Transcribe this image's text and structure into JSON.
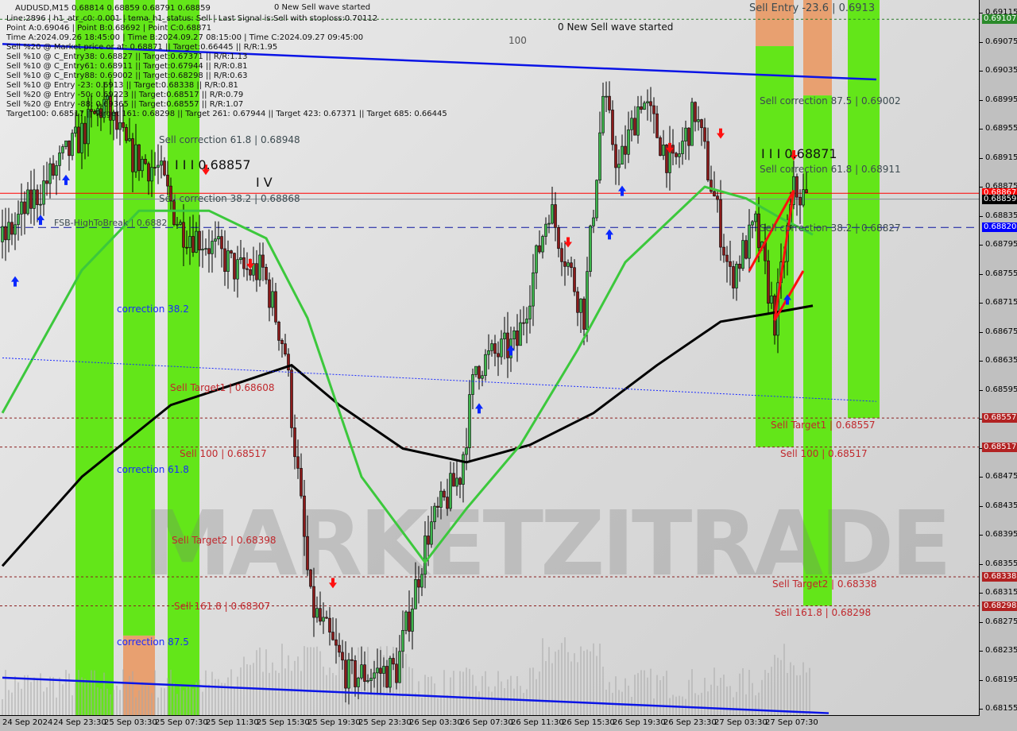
{
  "chart_data": {
    "type": "candlestick",
    "symbol_line": "AUDUSD,M15  0.68814 0.68859 0.68791 0.68859",
    "ylim": [
      0.68135,
      0.69135
    ],
    "y_ticks": [
      "0.69115",
      "0.69075",
      "0.69035",
      "0.68995",
      "0.68955",
      "0.68915",
      "0.68875",
      "0.68835",
      "0.68795",
      "0.68755",
      "0.68715",
      "0.68675",
      "0.68635",
      "0.68595",
      "0.68555",
      "0.68515",
      "0.68475",
      "0.68435",
      "0.68395",
      "0.68355",
      "0.68315",
      "0.68275",
      "0.68235",
      "0.68195",
      "0.68155"
    ],
    "x_ticks": [
      "24 Sep 2024",
      "24 Sep 23:30",
      "25 Sep 03:30",
      "25 Sep 07:30",
      "25 Sep 11:30",
      "25 Sep 15:30",
      "25 Sep 19:30",
      "25 Sep 23:30",
      "26 Sep 03:30",
      "26 Sep 07:30",
      "26 Sep 11:30",
      "26 Sep 15:30",
      "26 Sep 19:30",
      "26 Sep 23:30",
      "27 Sep 03:30",
      "27 Sep 07:30"
    ],
    "price_path": [
      [
        "2024-09-24T19:30",
        "0.68800"
      ],
      [
        "2024-09-24T22:00",
        "0.68860"
      ],
      [
        "2024-09-25T01:00",
        "0.68930"
      ],
      [
        "2024-09-25T03:30",
        "0.68990"
      ],
      [
        "2024-09-25T05:30",
        "0.68920"
      ],
      [
        "2024-09-25T07:45",
        "0.68900"
      ],
      [
        "2024-09-25T09:30",
        "0.68820"
      ],
      [
        "2024-09-25T11:30",
        "0.68800"
      ],
      [
        "2024-09-25T14:00",
        "0.68760"
      ],
      [
        "2024-09-25T16:00",
        "0.68760"
      ],
      [
        "2024-09-25T17:45",
        "0.68650"
      ],
      [
        "2024-09-25T19:45",
        "0.68300"
      ],
      [
        "2024-09-25T22:45",
        "0.68200"
      ],
      [
        "2024-09-26T02:30",
        "0.68210"
      ],
      [
        "2024-09-26T05:00",
        "0.68400"
      ],
      [
        "2024-09-26T07:30",
        "0.68480"
      ],
      [
        "2024-09-26T08:45",
        "0.68630"
      ],
      [
        "2024-09-26T12:00",
        "0.68660"
      ],
      [
        "2024-09-26T14:30",
        "0.68850"
      ],
      [
        "2024-09-26T17:15",
        "0.68700"
      ],
      [
        "2024-09-26T18:45",
        "0.69000"
      ],
      [
        "2024-09-26T20:00",
        "0.68900"
      ],
      [
        "2024-09-26T21:45",
        "0.69000"
      ],
      [
        "2024-09-27T00:15",
        "0.68900"
      ],
      [
        "2024-09-27T02:00",
        "0.68980"
      ],
      [
        "2024-09-27T03:30",
        "0.68860"
      ],
      [
        "2024-09-27T04:45",
        "0.68750"
      ],
      [
        "2024-09-27T06:45",
        "0.68820"
      ],
      [
        "2024-09-27T08:15",
        "0.68692"
      ],
      [
        "2024-09-27T09:45",
        "0.68871"
      ],
      [
        "2024-09-27T10:45",
        "0.68859"
      ]
    ],
    "series": [
      {
        "kind": "moving-average",
        "color": "#000000",
        "points": [
          [
            "2024-09-24T19:30",
            0.68353
          ],
          [
            "2024-09-25T01:45",
            0.68476
          ],
          [
            "2024-09-25T08:45",
            0.68575
          ],
          [
            "2024-09-25T14:30",
            0.68608
          ],
          [
            "2024-09-25T18:15",
            0.6863
          ],
          [
            "2024-09-25T22:00",
            0.68575
          ],
          [
            "2024-09-26T03:00",
            0.68515
          ],
          [
            "2024-09-26T08:00",
            0.68496
          ],
          [
            "2024-09-26T13:00",
            0.6852
          ],
          [
            "2024-09-26T18:00",
            0.68564
          ],
          [
            "2024-09-26T23:00",
            0.6863
          ],
          [
            "2024-09-27T04:00",
            0.6869
          ],
          [
            "2024-09-27T07:45",
            0.68701
          ],
          [
            "2024-09-27T11:15",
            0.68712
          ]
        ]
      },
      {
        "kind": "moving-average",
        "color": "#3cc83c",
        "points": [
          [
            "2024-09-24T19:30",
            0.68564
          ],
          [
            "2024-09-25T01:45",
            0.68761
          ],
          [
            "2024-09-25T06:15",
            0.68843
          ],
          [
            "2024-09-25T11:45",
            0.68843
          ],
          [
            "2024-09-25T16:15",
            0.68805
          ],
          [
            "2024-09-25T19:30",
            0.68695
          ],
          [
            "2024-09-25T23:45",
            0.68476
          ],
          [
            "2024-09-26T04:45",
            0.68358
          ],
          [
            "2024-09-26T08:00",
            0.68432
          ],
          [
            "2024-09-26T12:15",
            0.6852
          ],
          [
            "2024-09-26T16:45",
            0.68651
          ],
          [
            "2024-09-26T20:30",
            0.68772
          ],
          [
            "2024-09-27T02:45",
            0.68876
          ],
          [
            "2024-09-27T06:00",
            0.6886
          ],
          [
            "2024-09-27T08:30",
            0.68835
          ],
          [
            "2024-09-27T11:15",
            0.6881
          ]
        ]
      },
      {
        "kind": "trendline",
        "color": "#0a14e6",
        "points": [
          [
            "2024-09-24T19:30",
            0.69073
          ],
          [
            "2024-09-27T16:15",
            0.69024
          ]
        ]
      },
      {
        "kind": "trendline",
        "color": "#0a14e6",
        "points": [
          [
            "2024-09-24T19:30",
            0.68199
          ],
          [
            "2024-09-27T12:30",
            0.6815
          ]
        ]
      },
      {
        "kind": "dotted-trendline",
        "color": "#1a2aff",
        "points": [
          [
            "2024-09-24T19:30",
            0.6864
          ],
          [
            "2024-09-27T16:15",
            0.6858
          ]
        ]
      }
    ],
    "zones": [
      {
        "start": "2024-09-25T01:15",
        "end": "2024-09-25T04:15",
        "color": "#63e619",
        "from": 0.68135,
        "to": 0.69135
      },
      {
        "start": "2024-09-25T05:00",
        "end": "2024-09-25T07:30",
        "color": "#63e619",
        "from": 0.68257,
        "to": 0.69135
      },
      {
        "start": "2024-09-25T05:00",
        "end": "2024-09-25T07:30",
        "color": "#e8a070",
        "from": 0.68135,
        "to": 0.68257
      },
      {
        "start": "2024-09-25T08:30",
        "end": "2024-09-25T11:00",
        "color": "#63e619",
        "from": 0.68135,
        "to": 0.69135
      },
      {
        "start": "2024-09-27T06:45",
        "end": "2024-09-27T09:45",
        "color": "#e8a070",
        "from": 0.6907,
        "to": 0.69135
      },
      {
        "start": "2024-09-27T06:45",
        "end": "2024-09-27T09:45",
        "color": "#63e619",
        "from": 0.68517,
        "to": 0.6907
      },
      {
        "start": "2024-09-27T10:30",
        "end": "2024-09-27T12:45",
        "color": "#e8a070",
        "from": 0.69002,
        "to": 0.69135
      },
      {
        "start": "2024-09-27T10:30",
        "end": "2024-09-27T12:45",
        "color": "#63e619",
        "from": 0.68298,
        "to": 0.69002
      },
      {
        "start": "2024-09-27T14:00",
        "end": "2024-09-27T16:30",
        "color": "#63e619",
        "from": 0.68557,
        "to": 0.69135
      }
    ],
    "levels": [
      {
        "price": 0.68867,
        "color": "#ff0000",
        "style": "solid"
      },
      {
        "price": 0.68859,
        "color": "#808890",
        "style": "solid"
      },
      {
        "price": 0.6882,
        "color": "#0a14a0",
        "style": "dashed"
      },
      {
        "price": 0.69107,
        "color": "#2a7a2a",
        "style": "dotted"
      },
      {
        "price": 0.68557,
        "color": "#8b2020",
        "style": "dotted"
      },
      {
        "price": 0.68517,
        "color": "#8b2020",
        "style": "dotted"
      },
      {
        "price": 0.68338,
        "color": "#8b2020",
        "style": "dotted"
      },
      {
        "price": 0.68298,
        "color": "#8b2020",
        "style": "dotted"
      }
    ],
    "badges": [
      {
        "text": "0.69107",
        "color": "#2a8a2a"
      },
      {
        "text": "0.68867",
        "color": "#ff0000"
      },
      {
        "text": "0.68859",
        "color": "#000000"
      },
      {
        "text": "0.68820",
        "color": "#0000ff"
      },
      {
        "text": "0.68557",
        "color": "#b22222"
      },
      {
        "text": "0.68517",
        "color": "#b22222"
      },
      {
        "text": "0.68338",
        "color": "#b22222"
      },
      {
        "text": "0.68298",
        "color": "#b22222"
      }
    ]
  },
  "info": {
    "wave_top": "0 New Sell wave started",
    "l1": "Line:2896 | h1_atr_c0: 0.001 | tema_h1_status: Sell | Last Signal is:Sell with stoploss:0.70112",
    "l2": "Point A:0.69046 | Point B:0.68692 | Point C:0.68871",
    "l3": "Time A:2024.09.26 18:45:00 | Time B:2024.09.27 08:15:00 | Time C:2024.09.27 09:45:00",
    "l4": "Sell %20 @ Market price or at: 0.68871 || Target:0.66445 || R/R:1.95",
    "l5": "Sell %10 @ C_Entry38: 0.68827 || Target:0.67371 || R/R:1.13",
    "l6": "Sell %10 @ C_Entry61: 0.68911 || Target:0.67944 || R/R:0.81",
    "l7": "Sell %10 @ C_Entry88: 0.69002 || Target:0.68298 || R/R:0.63",
    "l8": "Sell %10 @ Entry -23: 0.6913 || Target:0.68338 || R/R:0.81",
    "l9": "Sell %20 @ Entry -50: 0.69223 || Target:0.68517 || R/R:0.79",
    "l10": "Sell %20 @ Entry -88: 0.69365 || Target:0.68557 || R/R:1.07",
    "l11": "Target100: 0.68517 || Target 161: 0.68298 || Target 261: 0.67944 || Target 423: 0.67371 || Target 685: 0.66445"
  },
  "labels": {
    "hundred": "100",
    "wave_mid": "0 New Sell wave started",
    "sell_entry": "Sell Entry -23.6 | 0.6913",
    "r_corr875": "Sell correction 87.5 | 0.69002",
    "r_wave3": "I I I 0.68871",
    "r_corr618": "Sell correction 61.8 | 0.68911",
    "r_corr382": "Sell correction 38.2 | 0.68827",
    "r_t1": "Sell Target1 | 0.68557",
    "r_100": "Sell 100 | 0.68517",
    "r_t2": "Sell Target2 | 0.68338",
    "r_1618": "Sell 161.8 | 0.68298",
    "l_corr618": "Sell correction 61.8 | 0.68948",
    "l_wave3": "I I I 0.68857",
    "l_wave4": "I V",
    "l_corr382": "Sell correction 38.2 | 0.68868",
    "fsb": "FSB-HighToBreak | 0.6882",
    "c382": "correction 38.2",
    "l_t1": "Sell Target1 | 0.68608",
    "l_100": "Sell 100 | 0.68517",
    "c618": "correction 61.8",
    "l_t2": "Sell Target2 | 0.68398",
    "l_1618": "Sell 161.8 | 0.68307",
    "c875": "correction 87.5",
    "watermark": "MARKETZITRADE"
  }
}
